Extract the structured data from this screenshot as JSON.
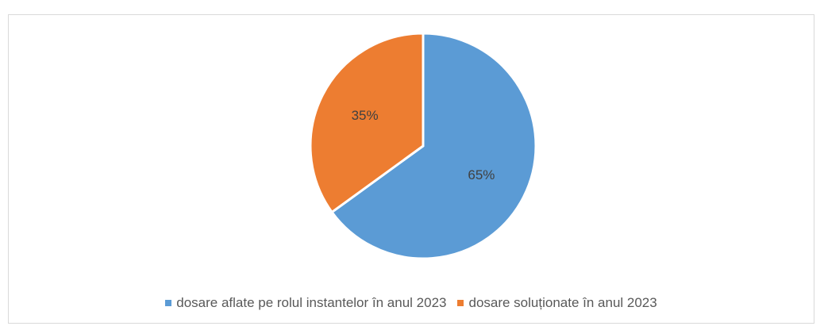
{
  "chart_data": {
    "type": "pie",
    "title": "",
    "categories": [
      "dosare aflate pe rolul instantelor  în anul 2023",
      "dosare soluționate în anul 2023"
    ],
    "values": [
      65,
      35
    ],
    "data_labels": [
      "65%",
      "35%"
    ],
    "colors": [
      "#5b9bd5",
      "#ed7d31"
    ],
    "legend_position": "bottom",
    "start_angle": "12 o'clock",
    "direction": "clockwise"
  }
}
